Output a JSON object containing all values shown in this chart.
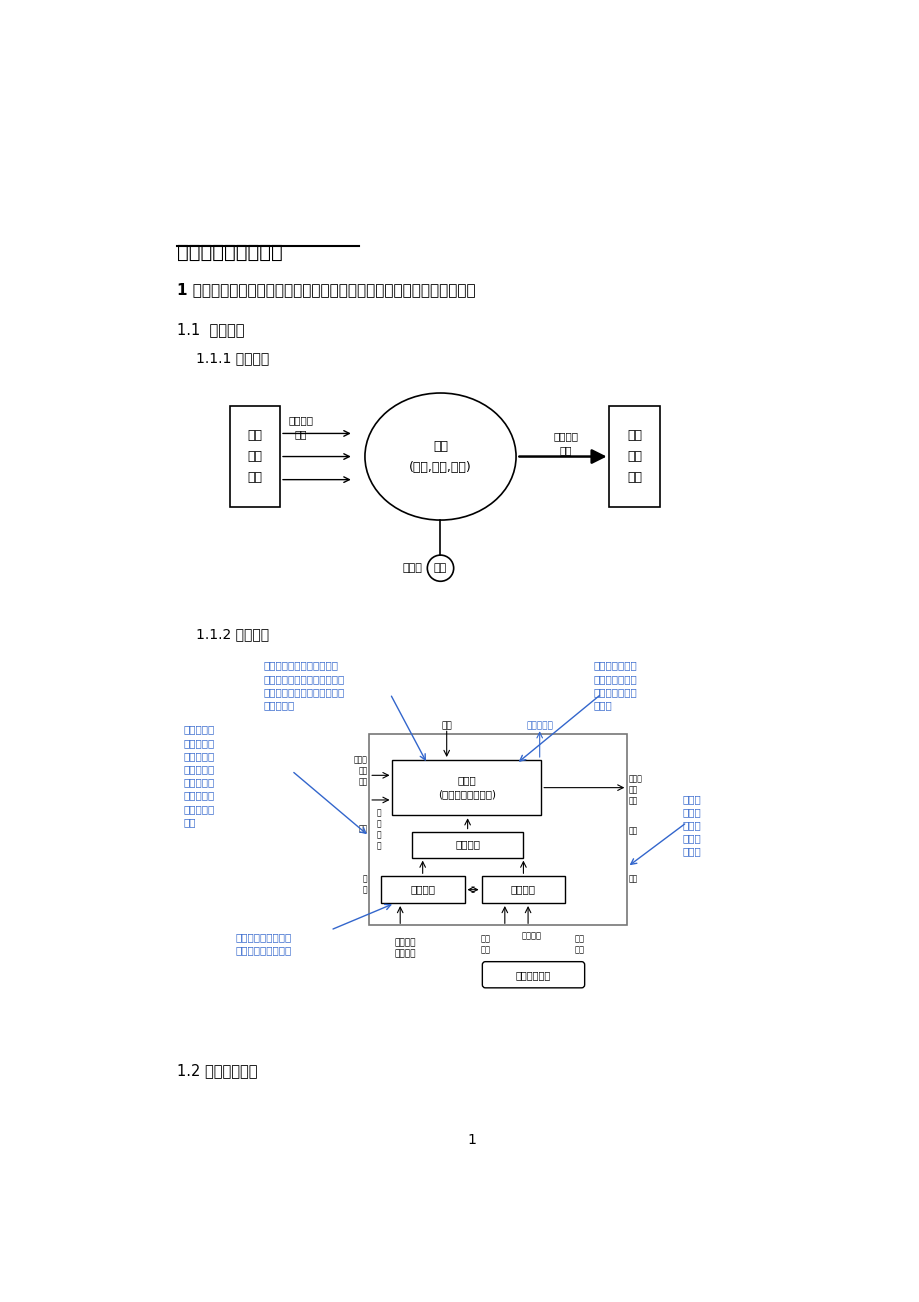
{
  "bg_color": "#ffffff",
  "title": "机电一体化复习提纲",
  "section1_bold": "1 机电一体化系统的构成要素及其功能，机电一体化系统中的关键技术。",
  "section11": "1.1  功能构成",
  "section111": "1.1.1 目的功能",
  "section112": "1.1.2 内部功能",
  "section12": "1.2 基本结构要素",
  "page_num": "1",
  "diagram1": {
    "left_box_text": "物质\n能量\n信息",
    "left_label": "工业三大\n要素",
    "circle_text": "系统\n(变换,传递,储存)",
    "right_label": "具有所需\n特性",
    "right_box_text": "物质\n能量\n信息",
    "bottom_circle_text": "控制",
    "bottom_label": "（人）"
  },
  "diagram2": {
    "top_left_note": "是实现系统目的直接必需的\n功能，主要是对物质、能量、\n信息或其相互结合进行变换、\n传递和存储",
    "top_right_note": "是对整个系统进\n行控制，使其正\n常运转，实施目\n的功能",
    "left_note": "是使构成系\n统的子系统\n及元、部件\n维持确定的\n时间和空间\n上的相互关\n系所必需的\n功能",
    "bottom_left_note": "向系统提供动力、使\n系统得以运转的功能",
    "right_note": "是获取\n系统内\n部、外\n部信息\n的功能",
    "main_func": "主功能\n(变换、传递、储存)",
    "calc_func": "计测功能",
    "power_func": "动力功能",
    "control_func": "控制功能",
    "bottom_box": "人或其它系统",
    "side_label": "构造功能"
  }
}
